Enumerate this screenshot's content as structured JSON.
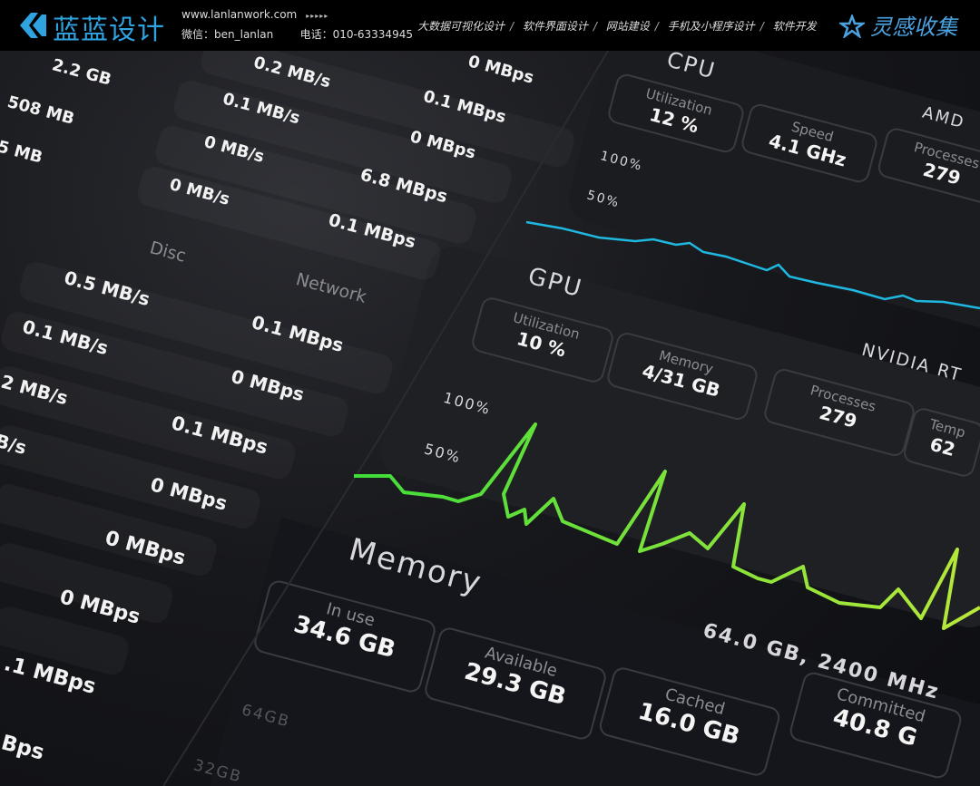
{
  "banner": {
    "logo_text": "蓝蓝设计",
    "site": "www.lanlanwork.com",
    "arrows": "▸▸▸▸▸",
    "wechat": "微信：ben_lanlan",
    "phone": "电话：010-63334945",
    "nav": [
      "大数据可视化设计",
      "软件界面设计",
      "网站建设",
      "手机及小程序设计",
      "软件开发"
    ],
    "nav_sep": "/",
    "brand": "灵感收集",
    "brand_color": "#4aa3e0",
    "logo_color": "#2fa3e0"
  },
  "left": {
    "disc_label": "Disc",
    "network_label": "Network",
    "top_rows": [
      {
        "mem": "2.2 GB",
        "disc": "0.2 MB/s",
        "net": "0 MBps"
      },
      {
        "mem": "508 MB",
        "disc": "0.1 MB/s",
        "net": "0.1 MBps"
      },
      {
        "mem": "5 MB",
        "disc": "0 MB/s",
        "net": "0 MBps"
      },
      {
        "disc": "0 MB/s",
        "net": "6.8 MBps"
      },
      {
        "net": "0.1 MBps"
      }
    ],
    "bottom_rows": [
      {
        "disc": "0.5 MB/s",
        "net": "0.1 MBps"
      },
      {
        "disc": "0.1 MB/s",
        "net": "0 MBps"
      },
      {
        "disc": "2 MB/s",
        "net": "0.1 MBps"
      },
      {
        "disc": "B/s",
        "net": "0 MBps"
      },
      {
        "net": "0 MBps"
      },
      {
        "net": "0 MBps"
      },
      {
        "net": ".1 MBps"
      },
      {
        "net": "Bps"
      }
    ]
  },
  "cpu": {
    "title": "CPU",
    "model": "AMD",
    "cards": [
      {
        "label": "Utilization",
        "value": "12 %"
      },
      {
        "label": "Speed",
        "value": "4.1 GHz"
      },
      {
        "label": "Processes",
        "value": "279"
      }
    ],
    "y100": "100%",
    "y50": "50%",
    "line_color": "#1fb8e0"
  },
  "gpu": {
    "title": "GPU",
    "model": "NVIDIA RT",
    "cards": [
      {
        "label": "Utilization",
        "value": "10 %"
      },
      {
        "label": "Memory",
        "value": "4/31 GB"
      },
      {
        "label": "Processes",
        "value": "279"
      },
      {
        "label": "Temp",
        "value": "62"
      }
    ],
    "y100": "100%",
    "y50": "50%",
    "line_color_start": "#3fdc3a",
    "line_color_end": "#b8e83a"
  },
  "memory": {
    "title": "Memory",
    "spec": "64.0 GB, 2400 MHz",
    "cards": [
      {
        "label": "In use",
        "value": "34.6 GB"
      },
      {
        "label": "Available",
        "value": "29.3 GB"
      },
      {
        "label": "Cached",
        "value": "16.0 GB"
      },
      {
        "label": "Committed",
        "value": "40.8 G"
      }
    ],
    "y64": "64GB",
    "y32": "32GB"
  }
}
